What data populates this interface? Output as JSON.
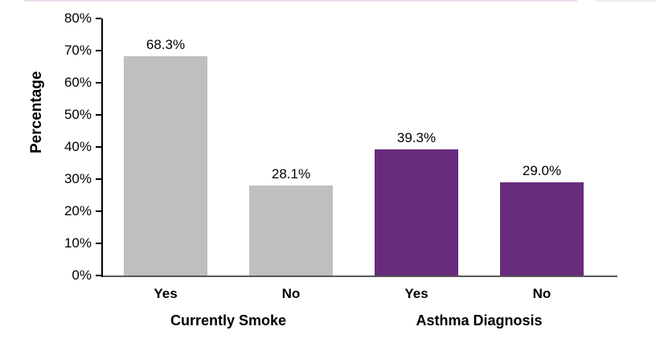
{
  "chart_data": {
    "type": "bar",
    "title": "",
    "ylabel": "Percentage",
    "xlabel": "",
    "ylim": [
      0,
      80
    ],
    "ytick_step": 10,
    "ytick_suffix": "%",
    "grid": false,
    "legend": "none",
    "categories": [
      "Yes",
      "No",
      "Yes",
      "No"
    ],
    "groups": [
      {
        "label": "Currently Smoke",
        "color": "#bfbfbf",
        "bars": [
          {
            "category": "Yes",
            "value": 68.3,
            "value_label": "68.3%"
          },
          {
            "category": "No",
            "value": 28.1,
            "value_label": "28.1%"
          }
        ]
      },
      {
        "label": "Asthma Diagnosis",
        "color": "#682c7c",
        "bars": [
          {
            "category": "Yes",
            "value": 39.3,
            "value_label": "39.3%"
          },
          {
            "category": "No",
            "value": 29.0,
            "value_label": "29.0%"
          }
        ]
      }
    ]
  },
  "colors": {
    "gray_bar": "#bfbfbf",
    "purple_bar": "#682c7c",
    "y_axis_line": "#000000",
    "baseline": "#595959",
    "text": "#000000",
    "top_accent_line": "#eddfed"
  }
}
